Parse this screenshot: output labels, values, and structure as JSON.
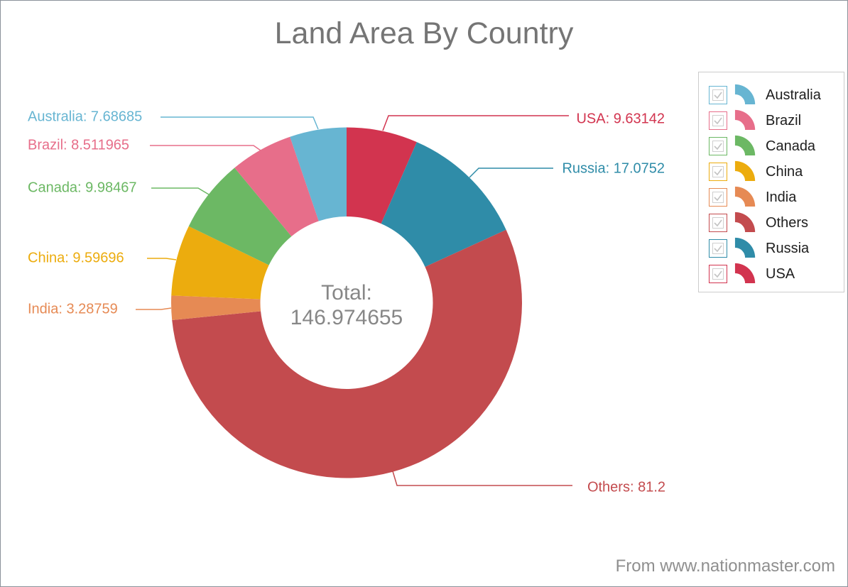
{
  "title": "Land Area By Country",
  "center": {
    "line1": "Total:",
    "line2": "146.974655"
  },
  "attribution": "From www.nationmaster.com",
  "chart_data": {
    "type": "pie",
    "subtype": "donut",
    "title": "Land Area By Country",
    "center_text": "Total: 146.974655",
    "total": 146.974655,
    "legend_position": "right",
    "slices_clockwise_from_top": [
      {
        "label": "USA",
        "value": 9.63142,
        "color": "#d2344f"
      },
      {
        "label": "Russia",
        "value": 17.0752,
        "color": "#2f8ca8"
      },
      {
        "label": "Others",
        "value": 81.2,
        "color": "#c34b4e"
      },
      {
        "label": "India",
        "value": 3.28759,
        "color": "#e68a54"
      },
      {
        "label": "China",
        "value": 9.59696,
        "color": "#ecac0e"
      },
      {
        "label": "Canada",
        "value": 9.98467,
        "color": "#6cb864"
      },
      {
        "label": "Brazil",
        "value": 8.511965,
        "color": "#e76e8a"
      },
      {
        "label": "Australia",
        "value": 7.68685,
        "color": "#67b5d2"
      }
    ],
    "callout_labels": [
      "USA: 9.63142",
      "Russia: 17.0752",
      "Others: 81.2",
      "India: 3.28759",
      "China: 9.59696",
      "Canada: 9.98467",
      "Brazil: 8.511965",
      "Australia: 7.68685"
    ]
  },
  "legend": {
    "items": [
      {
        "label": "Australia",
        "color": "#67b5d2",
        "checked": true
      },
      {
        "label": "Brazil",
        "color": "#e76e8a",
        "checked": true
      },
      {
        "label": "Canada",
        "color": "#6cb864",
        "checked": true
      },
      {
        "label": "China",
        "color": "#ecac0e",
        "checked": true
      },
      {
        "label": "India",
        "color": "#e68a54",
        "checked": true
      },
      {
        "label": "Others",
        "color": "#c34b4e",
        "checked": true
      },
      {
        "label": "Russia",
        "color": "#2f8ca8",
        "checked": true
      },
      {
        "label": "USA",
        "color": "#d2344f",
        "checked": true
      }
    ]
  }
}
